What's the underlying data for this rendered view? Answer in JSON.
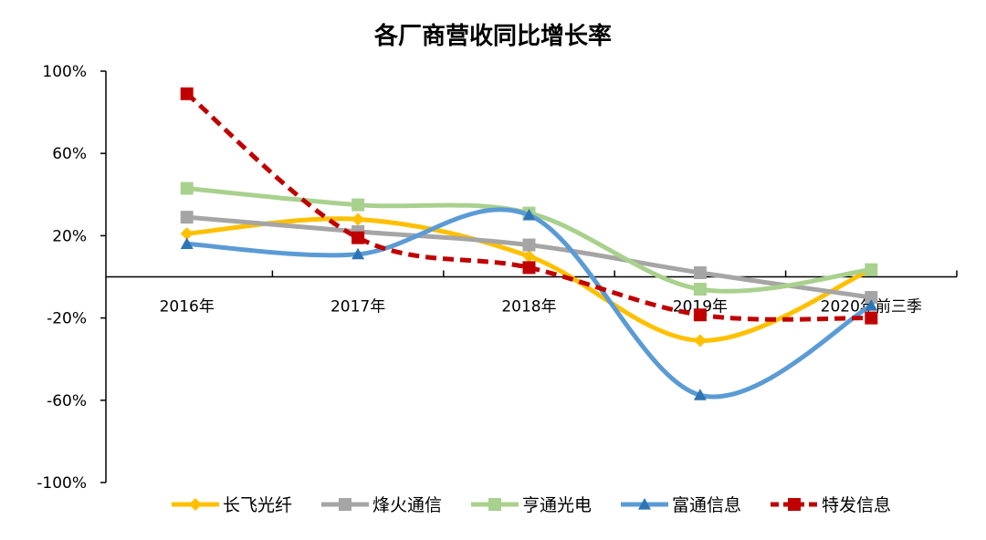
{
  "chart_data": {
    "type": "line",
    "title": "各厂商营收同比增长率",
    "categories": [
      "2016年",
      "2017年",
      "2018年",
      "2019年",
      "2020年前三季"
    ],
    "ylim": [
      -100,
      100
    ],
    "yticks": [
      100,
      60,
      20,
      -20,
      -60,
      -100
    ],
    "ytick_labels": [
      "100%",
      "60%",
      "20%",
      "-20%",
      "-60%",
      "-100%"
    ],
    "y_unit": "%",
    "grid": false,
    "legend_position": "bottom",
    "series": [
      {
        "name": "长飞光纤",
        "color": "#FFC000",
        "marker": "diamond",
        "dashed": false,
        "values": [
          21,
          28,
          10,
          -31,
          3.5
        ]
      },
      {
        "name": "烽火通信",
        "color": "#A5A5A5",
        "marker": "square",
        "dashed": false,
        "values": [
          29,
          22,
          15.5,
          2,
          -10
        ]
      },
      {
        "name": "亨通光电",
        "color": "#A9D18E",
        "marker": "square",
        "dashed": false,
        "values": [
          43,
          35,
          31,
          -6,
          3.5
        ]
      },
      {
        "name": "富通信息",
        "color": "#5B9BD5",
        "marker": "triangle",
        "marker_color": "#2E75B6",
        "dashed": false,
        "values": [
          16,
          11,
          30,
          -57.5,
          -14
        ]
      },
      {
        "name": "特发信息",
        "color": "#C00000",
        "marker": "square",
        "dashed": true,
        "values": [
          89,
          19,
          4.5,
          -18.5,
          -20
        ]
      }
    ]
  }
}
